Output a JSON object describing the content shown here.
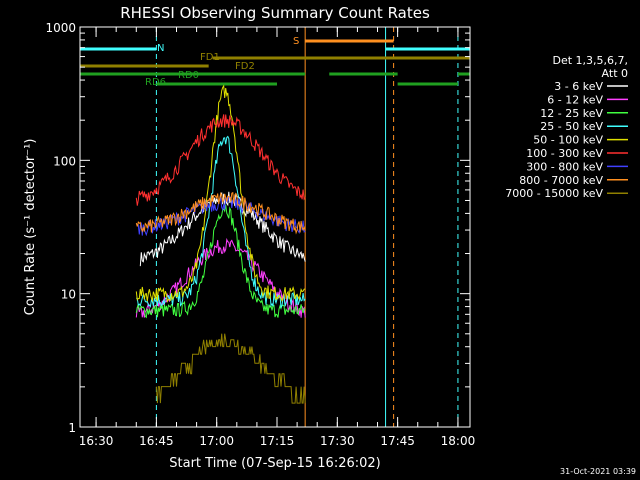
{
  "chart_data": {
    "type": "line",
    "title": "RHESSI Observing Summary Count Rates",
    "xlabel": "Start Time (07-Sep-15 16:26:02)",
    "ylabel": "Count Rate (s⁻¹ detector⁻¹)",
    "y_scale": "log",
    "ylim": [
      1,
      1000
    ],
    "xlim_minutes": [
      "16:26",
      "18:03"
    ],
    "x_ticks": [
      "16:30",
      "16:45",
      "17:00",
      "17:15",
      "17:30",
      "17:45",
      "18:00"
    ],
    "y_ticks": [
      "1",
      "10",
      "100",
      "1000"
    ],
    "grid": false,
    "legend_title": [
      "Det 1,3,5,6,7,",
      "Att 0"
    ],
    "legend_position": "right",
    "timestamp": "31-Oct-2021 03:39",
    "series": [
      {
        "name": "3 - 6 keV",
        "color": "#ffffff",
        "base": 17,
        "peak": 52,
        "t0": "16:41"
      },
      {
        "name": "6 - 12 keV",
        "color": "#ff40ff",
        "base": 6.5,
        "peak": 23,
        "t0": "16:40"
      },
      {
        "name": "12 - 25 keV",
        "color": "#40ff40",
        "base": 7.5,
        "peak": 45,
        "t0": "16:40"
      },
      {
        "name": "25 - 50 keV",
        "color": "#40ffff",
        "base": 9,
        "peak": 150,
        "t0": "16:40"
      },
      {
        "name": "50 - 100 keV",
        "color": "#e0e000",
        "base": 10,
        "peak": 330,
        "t0": "16:40"
      },
      {
        "name": "100 - 300 keV",
        "color": "#ff3030",
        "base": 48,
        "peak": 200,
        "t0": "16:40"
      },
      {
        "name": "300 - 800 keV",
        "color": "#4040ff",
        "base": 30,
        "peak": 48,
        "t0": "16:40"
      },
      {
        "name": "800 - 7000 keV",
        "color": "#ff9020",
        "base": 30,
        "peak": 52,
        "t0": "16:40"
      },
      {
        "name": "7000 - 15000 keV",
        "color": "#908000",
        "base": 1.5,
        "peak": 4.5,
        "t0": "16:45"
      }
    ],
    "flag_bars": [
      {
        "label": "N",
        "color": "#40ffff",
        "spans": [
          [
            "16:26",
            "16:45"
          ],
          [
            "17:42",
            "18:03"
          ]
        ]
      },
      {
        "label": "S",
        "color": "#ff9020",
        "spans": [
          [
            "17:22",
            "17:44"
          ]
        ]
      },
      {
        "label": "FD1",
        "color": "#908000",
        "spans": [
          [
            "16:26",
            "16:58"
          ]
        ]
      },
      {
        "label": "FD2",
        "color": "#908000",
        "spans": [
          [
            "16:59",
            "18:03"
          ]
        ]
      },
      {
        "label": "RD0",
        "color": "#20a020",
        "spans": [
          [
            "16:26",
            "17:22"
          ],
          [
            "17:28",
            "17:45"
          ],
          [
            "18:00",
            "18:03"
          ]
        ]
      },
      {
        "label": "RD6",
        "color": "#20a020",
        "spans": [
          [
            "16:45",
            "17:15"
          ],
          [
            "17:45",
            "18:00"
          ]
        ]
      }
    ],
    "vertical_markers": [
      {
        "time": "16:26",
        "color": "#40ffff",
        "style": "solid"
      },
      {
        "time": "16:45",
        "color": "#40ffff",
        "style": "dashed"
      },
      {
        "time": "17:22",
        "color": "#ff9020",
        "style": "solid"
      },
      {
        "time": "17:42",
        "color": "#40ffff",
        "style": "solid"
      },
      {
        "time": "17:44",
        "color": "#ff9020",
        "style": "dashed"
      },
      {
        "time": "18:00",
        "color": "#40ffff",
        "style": "dashed"
      }
    ]
  }
}
